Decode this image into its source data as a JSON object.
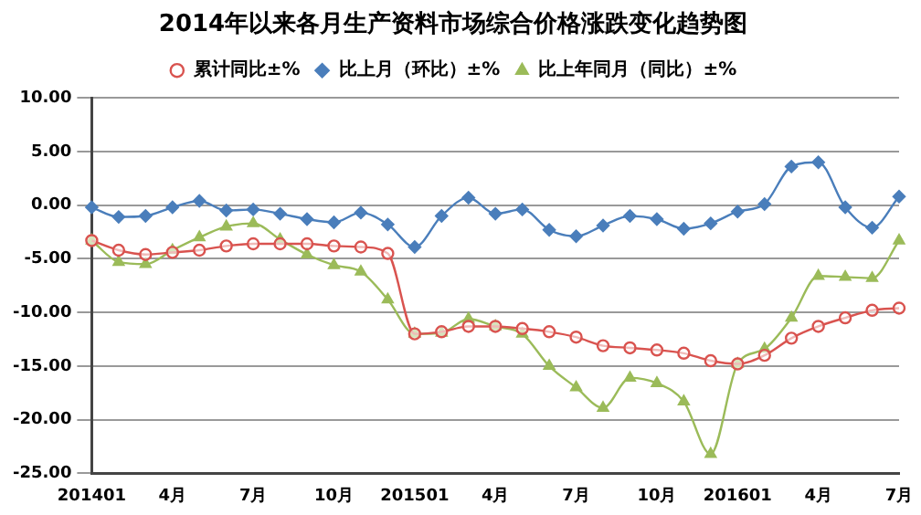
{
  "chart_data": {
    "type": "line",
    "title": "2014年以来各月生产资料市场综合价格涨跌变化趋势图",
    "categories": [
      "201401",
      null,
      null,
      "4月",
      null,
      null,
      "7月",
      null,
      null,
      "10月",
      null,
      null,
      "201501",
      null,
      null,
      "4月",
      null,
      null,
      "7月",
      null,
      null,
      "10月",
      null,
      null,
      "201601",
      null,
      null,
      "4月",
      null,
      null,
      "7月"
    ],
    "series": [
      {
        "name": "累计同比±%",
        "color": "#d9534f",
        "marker": "circle",
        "values": [
          -3.3,
          -4.2,
          -4.6,
          -4.4,
          -4.2,
          -3.8,
          -3.6,
          -3.6,
          -3.6,
          -3.8,
          -3.9,
          -4.5,
          -12.0,
          -11.8,
          -11.3,
          -11.3,
          -11.5,
          -11.8,
          -12.3,
          -13.1,
          -13.3,
          -13.5,
          -13.8,
          -14.5,
          -14.8,
          -14.0,
          -12.4,
          -11.3,
          -10.5,
          -9.8,
          -9.6
        ]
      },
      {
        "name": "比上月（环比）±%",
        "color": "#4a7ebb",
        "marker": "diamond",
        "values": [
          -0.2,
          -1.1,
          -1.0,
          -0.2,
          0.4,
          -0.5,
          -0.4,
          -0.8,
          -1.3,
          -1.6,
          -0.7,
          -1.8,
          -3.9,
          -1.0,
          0.7,
          -0.8,
          -0.4,
          -2.3,
          -2.9,
          -1.9,
          -1.0,
          -1.3,
          -2.2,
          -1.7,
          -0.6,
          0.1,
          3.6,
          4.0,
          -0.2,
          -2.1,
          0.8
        ]
      },
      {
        "name": "比上年同月（同比）±%",
        "color": "#9bbb59",
        "marker": "triangle",
        "values": [
          -3.3,
          -5.3,
          -5.5,
          -4.2,
          -3.0,
          -2.0,
          -1.7,
          -3.2,
          -4.6,
          -5.6,
          -6.2,
          -8.8,
          -12.0,
          -11.9,
          -10.6,
          -11.3,
          -12.0,
          -15.0,
          -17.0,
          -18.9,
          -16.1,
          -16.6,
          -18.3,
          -23.2,
          -14.8,
          -13.4,
          -10.5,
          -6.6,
          -6.7,
          -6.8,
          -3.3
        ]
      }
    ],
    "ylim": [
      -25,
      10
    ],
    "yticks": [
      {
        "value": 10,
        "label": "10.00"
      },
      {
        "value": 5,
        "label": "5.00"
      },
      {
        "value": 0,
        "label": "0.00"
      },
      {
        "value": -5,
        "label": "-5.00"
      },
      {
        "value": -10,
        "label": "-10.00"
      },
      {
        "value": -15,
        "label": "-15.00"
      },
      {
        "value": -20,
        "label": "-20.00"
      },
      {
        "value": -25,
        "label": "-25.00"
      }
    ],
    "grid": "y",
    "legend": "top"
  }
}
